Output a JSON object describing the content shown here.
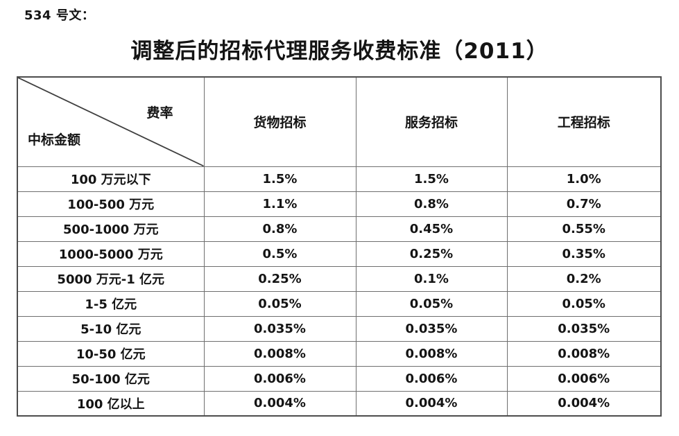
{
  "doc": {
    "ref_label": "534 号文：",
    "title": "调整后的招标代理服务收费标准（2011）"
  },
  "table": {
    "corner": {
      "top_right": "费率",
      "bottom_left": "中标金额"
    },
    "columns": [
      "货物招标",
      "服务招标",
      "工程招标"
    ],
    "rows": [
      {
        "label": "100 万元以下",
        "values": [
          "1.5%",
          "1.5%",
          "1.0%"
        ]
      },
      {
        "label": "100-500 万元",
        "values": [
          "1.1%",
          "0.8%",
          "0.7%"
        ]
      },
      {
        "label": "500-1000 万元",
        "values": [
          "0.8%",
          "0.45%",
          "0.55%"
        ]
      },
      {
        "label": "1000-5000 万元",
        "values": [
          "0.5%",
          "0.25%",
          "0.35%"
        ]
      },
      {
        "label": "5000 万元-1 亿元",
        "values": [
          "0.25%",
          "0.1%",
          "0.2%"
        ]
      },
      {
        "label": "1-5 亿元",
        "values": [
          "0.05%",
          "0.05%",
          "0.05%"
        ]
      },
      {
        "label": "5-10 亿元",
        "values": [
          "0.035%",
          "0.035%",
          "0.035%"
        ]
      },
      {
        "label": "10-50 亿元",
        "values": [
          "0.008%",
          "0.008%",
          "0.008%"
        ]
      },
      {
        "label": "50-100 亿元",
        "values": [
          "0.006%",
          "0.006%",
          "0.006%"
        ]
      },
      {
        "label": "100 亿以上",
        "values": [
          "0.004%",
          "0.004%",
          "0.004%"
        ]
      }
    ]
  },
  "colors": {
    "background": "#ffffff",
    "text": "#141414",
    "border_outer": "#4c4c4c",
    "border_inner": "#6e6e6e",
    "diagonal_line": "#3f3f3f"
  }
}
